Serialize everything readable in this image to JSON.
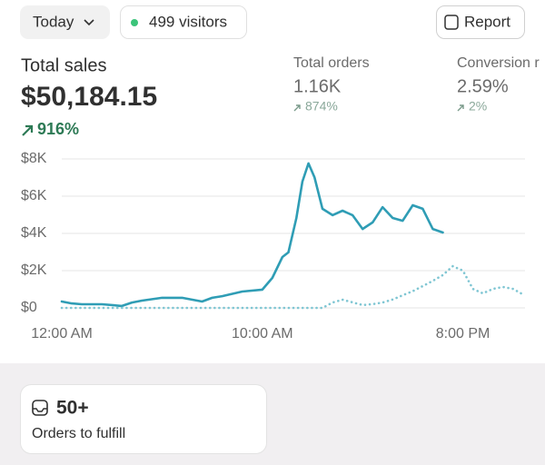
{
  "header": {
    "date_button": "Today",
    "visitors": "499 visitors",
    "report_button": "Report"
  },
  "metrics": [
    {
      "label": "Total sales",
      "value": "$50,184.15",
      "change": "916%"
    },
    {
      "label": "Total orders",
      "value": "1.16K",
      "change": "874%"
    },
    {
      "label": "Conversion r",
      "value": "2.59%",
      "change": "2%"
    }
  ],
  "chart_data": {
    "type": "line",
    "x": [
      0,
      0.5,
      1,
      2,
      3,
      3.5,
      4,
      5,
      6,
      7,
      7.5,
      8,
      9,
      10,
      10.5,
      11,
      11.3,
      11.7,
      12,
      12.3,
      12.6,
      13,
      13.5,
      14,
      14.5,
      15,
      15.5,
      16,
      16.5,
      17,
      17.5,
      18,
      18.5,
      19,
      19.5,
      20,
      20.5,
      21,
      21.5,
      22,
      22.5,
      22.9
    ],
    "series": [
      {
        "color": "#2f9db5",
        "line_style": "solid",
        "values": [
          340,
          240,
          195,
          195,
          100,
          290,
          390,
          540,
          540,
          340,
          540,
          630,
          880,
          980,
          1610,
          2730,
          2980,
          4830,
          6780,
          7760,
          7020,
          5320,
          4980,
          5220,
          4980,
          4240,
          4590,
          5410,
          4830,
          4680,
          5510,
          5320,
          4240,
          4050,
          null,
          null,
          null,
          null,
          null,
          null,
          null,
          null
        ]
      },
      {
        "color": "#7fc6d3",
        "line_style": "dotted",
        "values": [
          0,
          0,
          0,
          0,
          0,
          0,
          0,
          0,
          0,
          0,
          0,
          0,
          0,
          0,
          0,
          0,
          0,
          0,
          0,
          0,
          0,
          0,
          290,
          440,
          300,
          150,
          200,
          290,
          450,
          680,
          900,
          1170,
          1450,
          1760,
          2240,
          2000,
          1020,
          780,
          1020,
          1120,
          1020,
          780
        ]
      }
    ],
    "xlim": [
      0,
      23.1
    ],
    "xticks": [
      {
        "value": 0,
        "label": "12:00 AM"
      },
      {
        "value": 10,
        "label": "10:00 AM"
      },
      {
        "value": 20,
        "label": "8:00 PM"
      }
    ],
    "ylim": [
      0,
      8000
    ],
    "yticks": [
      {
        "value": 0,
        "label": "$0"
      },
      {
        "value": 2000,
        "label": "$2K"
      },
      {
        "value": 4000,
        "label": "$4K"
      },
      {
        "value": 6000,
        "label": "$6K"
      },
      {
        "value": 8000,
        "label": "$8K"
      }
    ],
    "grid": true
  },
  "card": {
    "value": "50+",
    "label": "Orders to fulfill"
  }
}
